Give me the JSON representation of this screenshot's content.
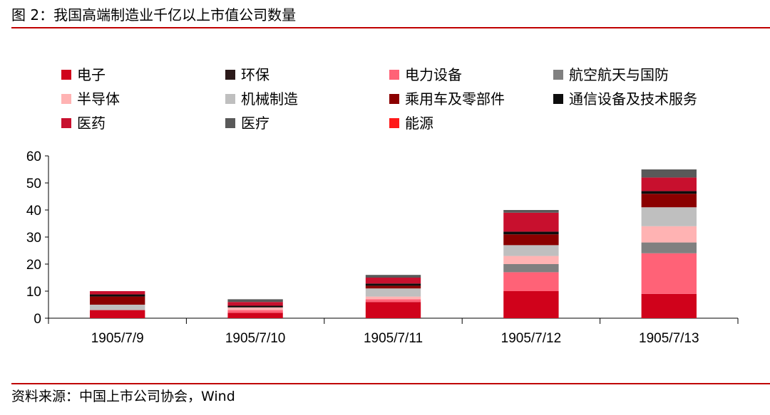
{
  "header": {
    "title": "图 2：我国高端制造业千亿以上市值公司数量"
  },
  "footer": {
    "source": "资料来源：中国上市公司协会，Wind"
  },
  "colors": {
    "rule": "#c00000"
  },
  "chart_data": {
    "type": "bar",
    "stacked": true,
    "title": "",
    "xlabel": "",
    "ylabel": "",
    "ylim": [
      0,
      60
    ],
    "yticks": [
      0,
      10,
      20,
      30,
      40,
      50,
      60
    ],
    "grid": false,
    "legend_position": "top",
    "categories": [
      "1905/7/9",
      "1905/7/10",
      "1905/7/11",
      "1905/7/12",
      "1905/7/13"
    ],
    "series": [
      {
        "name": "电子",
        "color": "#d0021b",
        "values": [
          3,
          2,
          6,
          10,
          9
        ]
      },
      {
        "name": "电力设备",
        "color": "#ff6277",
        "values": [
          0,
          1,
          1,
          7,
          15
        ]
      },
      {
        "name": "航空航天与国防",
        "color": "#808080",
        "values": [
          0,
          0,
          0,
          3,
          4
        ]
      },
      {
        "name": "半导体",
        "color": "#ffb3b3",
        "values": [
          0,
          1,
          1,
          3,
          6
        ]
      },
      {
        "name": "机械制造",
        "color": "#bfbfbf",
        "values": [
          2,
          0,
          3,
          4,
          7
        ]
      },
      {
        "name": "乘用车及零部件",
        "color": "#8b0000",
        "values": [
          3,
          0,
          1,
          4,
          5
        ]
      },
      {
        "name": "通信设备及技术服务",
        "color": "#0d0d0d",
        "values": [
          0.8,
          0.6,
          0.8,
          1,
          1
        ]
      },
      {
        "name": "环保",
        "color": "#2b1a1a",
        "values": [
          0,
          0,
          0,
          0,
          0
        ]
      },
      {
        "name": "医药",
        "color": "#c8102e",
        "values": [
          1.2,
          1.4,
          2.2,
          7,
          5
        ]
      },
      {
        "name": "医疗",
        "color": "#595959",
        "values": [
          0,
          1,
          1,
          1,
          3
        ]
      },
      {
        "name": "能源",
        "color": "#ff1a1a",
        "values": [
          0,
          0,
          0,
          0,
          0
        ]
      }
    ],
    "legend_order": [
      "电子",
      "环保",
      "电力设备",
      "航空航天与国防",
      "半导体",
      "机械制造",
      "乘用车及零部件",
      "通信设备及技术服务",
      "医药",
      "医疗",
      "能源"
    ]
  }
}
